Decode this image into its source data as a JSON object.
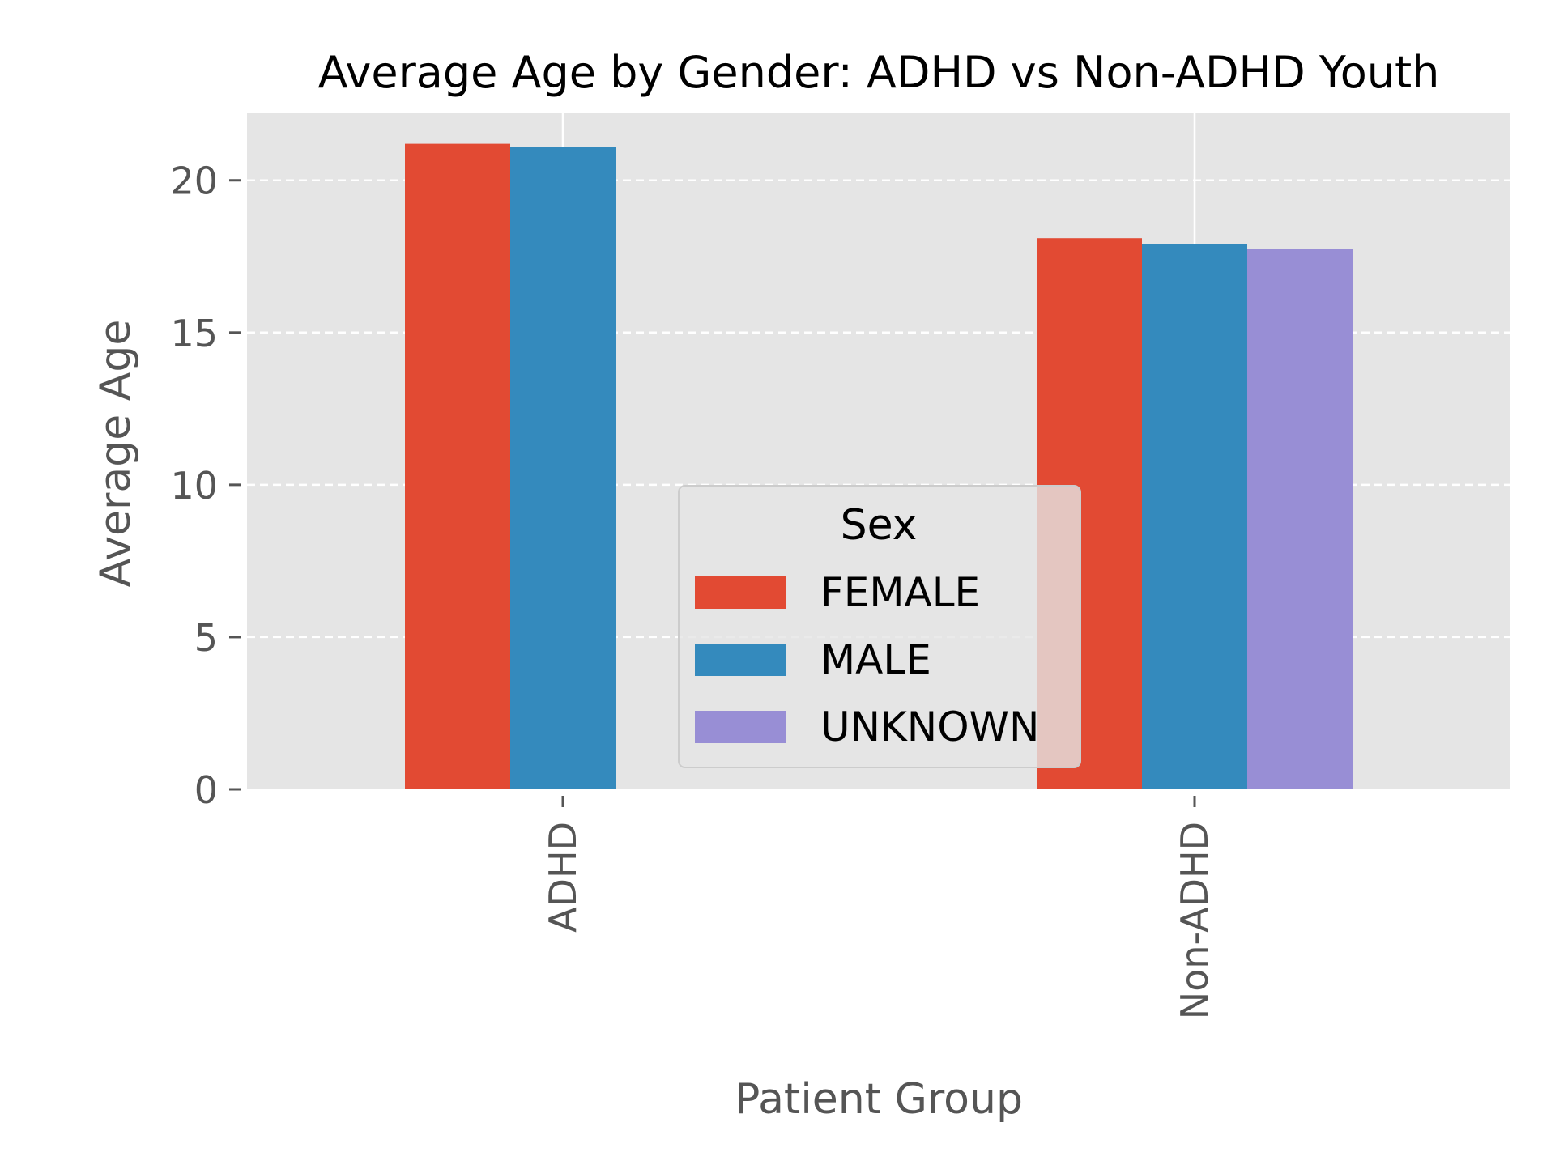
{
  "chart_data": {
    "type": "bar",
    "title": "Average Age by Gender: ADHD vs Non-ADHD Youth",
    "xlabel": "Patient Group",
    "ylabel": "Average Age",
    "categories": [
      "ADHD",
      "Non-ADHD"
    ],
    "series": [
      {
        "name": "FEMALE",
        "values": [
          21.2,
          18.1
        ],
        "color": "#E24A33"
      },
      {
        "name": "MALE",
        "values": [
          21.1,
          17.9
        ],
        "color": "#348ABD"
      },
      {
        "name": "UNKNOWN",
        "values": [
          null,
          17.75
        ],
        "color": "#988ED5"
      }
    ],
    "ylim": [
      0,
      22.2
    ],
    "yticks": [
      0,
      5,
      10,
      15,
      20
    ],
    "x_tick_rotation": "vertical",
    "grid": {
      "y": "dashed",
      "x": "solid"
    },
    "legend": {
      "title": "Sex",
      "placement": "lower center"
    },
    "style": {
      "plot_background": "#E5E5E5",
      "grid_color": "#FFFFFF",
      "text_color": "#555555",
      "title_color": "#000000"
    }
  }
}
